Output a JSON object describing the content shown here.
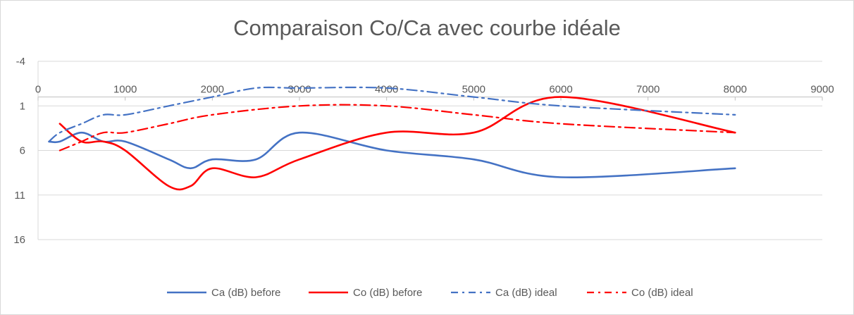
{
  "chart_data": {
    "type": "line",
    "title": "Comparaison Co/Ca avec courbe idéale",
    "xlabel": "",
    "ylabel": "",
    "xlim": [
      0,
      9000
    ],
    "ylim": [
      -4,
      16
    ],
    "y_reversed": true,
    "grid": "horizontal",
    "legend_position": "bottom",
    "x_ticks": [
      "0",
      "1000",
      "2000",
      "3000",
      "4000",
      "5000",
      "6000",
      "7000",
      "8000",
      "9000"
    ],
    "y_ticks": [
      "-4",
      "1",
      "6",
      "11",
      "16"
    ],
    "series": [
      {
        "name": "Ca (dB) before",
        "color": "#4472C4",
        "style": "solid",
        "x": [
          125,
          250,
          500,
          750,
          1000,
          1500,
          1750,
          2000,
          2500,
          3000,
          4000,
          5000,
          6000,
          8000
        ],
        "y": [
          5,
          5,
          4,
          5,
          5,
          7,
          8,
          7,
          7,
          4,
          6,
          7,
          9,
          8
        ]
      },
      {
        "name": "Co (dB) before",
        "color": "#FF0000",
        "style": "solid",
        "x": [
          250,
          500,
          750,
          1000,
          1500,
          1750,
          2000,
          2500,
          3000,
          4000,
          5000,
          6000,
          8000
        ],
        "y": [
          3,
          5,
          5,
          6,
          10,
          10,
          8,
          9,
          7,
          4,
          4,
          0,
          4
        ]
      },
      {
        "name": "Ca (dB) ideal",
        "color": "#4472C4",
        "style": "dashdot",
        "x": [
          125,
          250,
          500,
          750,
          1000,
          1500,
          2000,
          2500,
          3000,
          4000,
          5000,
          6000,
          8000
        ],
        "y": [
          5,
          4,
          3,
          2,
          2,
          1,
          0,
          -1,
          -1,
          -1,
          0,
          1,
          2
        ]
      },
      {
        "name": "Co (dB) ideal",
        "color": "#FF0000",
        "style": "dashdot",
        "x": [
          250,
          500,
          750,
          1000,
          1500,
          2000,
          3000,
          4000,
          5000,
          6000,
          8000
        ],
        "y": [
          6,
          5,
          4,
          4,
          3,
          2,
          1,
          1,
          2,
          3,
          4
        ]
      }
    ]
  }
}
